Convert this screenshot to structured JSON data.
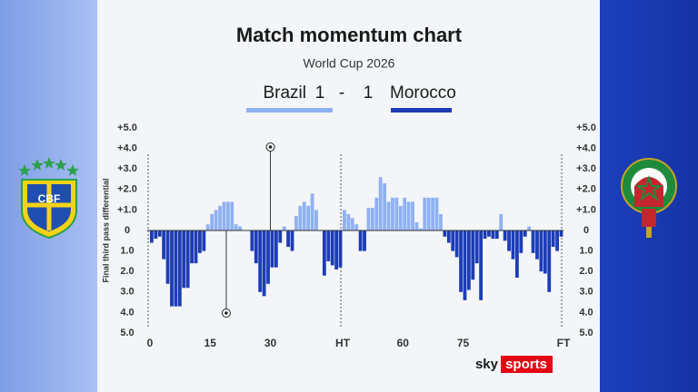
{
  "chart_data": {
    "type": "bar",
    "title": "Match momentum chart",
    "subtitle": "World Cup 2026",
    "y_label": "Final third pass differential",
    "score_separator": "-",
    "home": {
      "name": "Brazil",
      "score": 1,
      "color": "#8fb1f2",
      "crest_text": "CBF",
      "goals": [
        30
      ]
    },
    "away": {
      "name": "Morocco",
      "score": 1,
      "color": "#1d3db5",
      "goals": [
        19
      ]
    },
    "values": [
      -0.6,
      -0.4,
      -0.3,
      -1.4,
      -2.6,
      -3.7,
      -3.7,
      -3.7,
      -2.8,
      -2.8,
      -1.6,
      -1.6,
      -1.1,
      -1.0,
      0.3,
      0.8,
      1.0,
      1.2,
      1.4,
      1.4,
      1.4,
      0.3,
      0.2,
      0,
      0,
      -1.0,
      -1.6,
      -3.0,
      -3.2,
      -2.6,
      -1.8,
      -1.8,
      -0.6,
      0.2,
      -0.8,
      -1.0,
      0.7,
      1.2,
      1.4,
      1.2,
      1.8,
      1.0,
      0,
      -2.2,
      -1.5,
      -1.7,
      -1.9,
      -1.8,
      1.0,
      0.8,
      0.6,
      0.3,
      -1.0,
      -1.0,
      1.1,
      1.1,
      1.6,
      2.6,
      2.3,
      1.4,
      1.6,
      1.6,
      1.2,
      1.6,
      1.4,
      1.4,
      0.4,
      0.1,
      1.6,
      1.6,
      1.6,
      1.6,
      0.8,
      -0.3,
      -0.6,
      -1.0,
      -1.3,
      -3.0,
      -3.4,
      -2.9,
      -2.4,
      -1.6,
      -3.4,
      -0.4,
      -0.3,
      -0.4,
      -0.4,
      0.8,
      -0.5,
      -1.0,
      -1.4,
      -2.3,
      -1.1,
      -0.3,
      0.2,
      -1.1,
      -1.4,
      -2.0,
      -2.1,
      -3.0,
      -0.8,
      -1.0,
      -0.3
    ],
    "xlim": [
      0,
      103
    ],
    "xticks": [
      0,
      15,
      30,
      {
        "value": 48,
        "label": "HT"
      },
      {
        "value": 63,
        "label": "60"
      },
      {
        "value": 78,
        "label": "75"
      },
      {
        "value": 103,
        "label": "FT"
      }
    ],
    "ylim": [
      -5,
      5
    ],
    "yticks": [
      {
        "value": 5,
        "label": "+5.0"
      },
      {
        "value": 4,
        "label": "+4.0"
      },
      {
        "value": 3,
        "label": "+3.0"
      },
      {
        "value": 2,
        "label": "+2.0"
      },
      {
        "value": 1,
        "label": "+1.0"
      },
      0,
      {
        "value": -1,
        "label": "1.0"
      },
      {
        "value": -2,
        "label": "2.0"
      },
      {
        "value": -3,
        "label": "3.0"
      },
      {
        "value": -4,
        "label": "4.0"
      },
      {
        "value": -5,
        "label": "5.0"
      }
    ],
    "logo": [
      "sky",
      "sports"
    ]
  }
}
